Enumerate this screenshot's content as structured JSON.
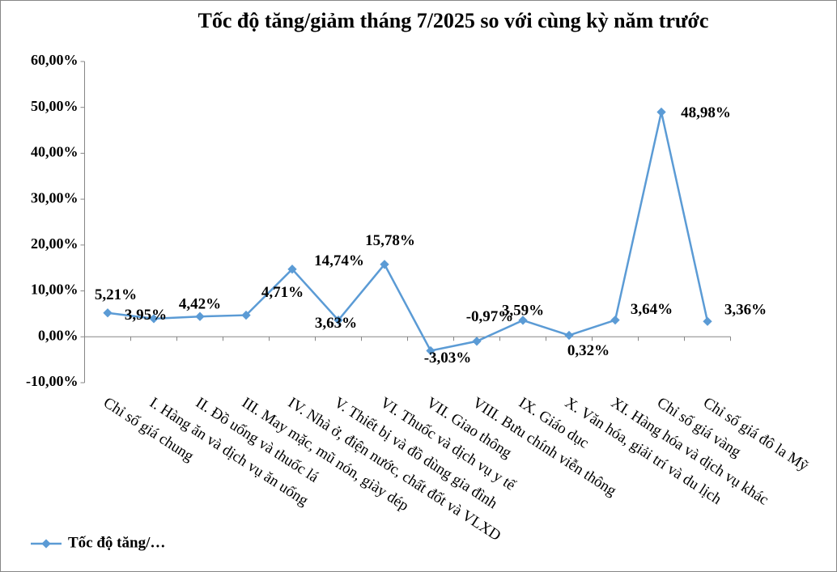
{
  "chart_data": {
    "type": "line",
    "title": "Tốc độ tăng/giảm tháng 7/2025 so với cùng kỳ năm trước",
    "categories": [
      "Chỉ số giá chung",
      "I. Hàng ăn và dịch vụ ăn uống",
      "II. Đồ uống và thuốc lá",
      "III. May mặc, mũ nón, giày dép",
      "IV. Nhà ở, điện nước, chất đốt và VLXD",
      "V. Thiết bị và đồ dùng gia đình",
      "VI. Thuốc và dịch vụ y tế",
      "VII. Giao thông",
      "VIII. Bưu chính viễn thông",
      "IX. Giáo dục",
      "X. Văn hóa, giải trí và du lịch",
      "XI. Hàng hóa và dịch vụ khác",
      "Chỉ số giá vàng",
      "Chỉ số giá đô la Mỹ"
    ],
    "series": [
      {
        "name": "Tốc độ tăng/…",
        "color": "#5b9bd5",
        "values": [
          5.21,
          3.95,
          4.42,
          4.71,
          14.74,
          3.63,
          15.78,
          -3.03,
          -0.97,
          3.59,
          0.32,
          3.64,
          48.98,
          3.36
        ],
        "value_labels": [
          "5,21%",
          "3,95%",
          "4,42%",
          "4,71%",
          "14,74%",
          "3,63%",
          "15,78%",
          "-3,03%",
          "-0,97%",
          "3,59%",
          "0,32%",
          "3,64%",
          "48,98%",
          "3,36%"
        ]
      }
    ],
    "ylim": [
      -10,
      60
    ],
    "yticks": [
      {
        "value": -10,
        "label": "-10,00%"
      },
      {
        "value": 0,
        "label": "0,00%"
      },
      {
        "value": 10,
        "label": "10,00%"
      },
      {
        "value": 20,
        "label": "20,00%"
      },
      {
        "value": 30,
        "label": "30,00%"
      },
      {
        "value": 40,
        "label": "40,00%"
      },
      {
        "value": 50,
        "label": "50,00%"
      },
      {
        "value": 60,
        "label": "60,00%"
      }
    ],
    "grid": false,
    "legend": "bottom-left"
  }
}
